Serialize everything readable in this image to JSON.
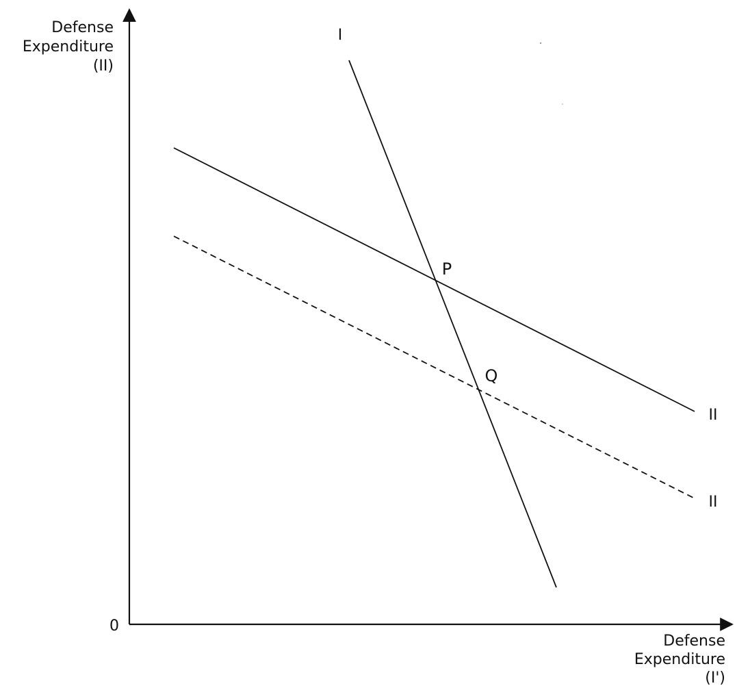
{
  "y_axis": {
    "label_lines": [
      "Defense",
      "Expenditure",
      "(II)"
    ]
  },
  "x_axis": {
    "label_lines": [
      "Defense",
      "Expenditure",
      "(I')"
    ]
  },
  "origin_label": "0",
  "curves": {
    "reaction_I": {
      "label": "I",
      "style": "solid"
    },
    "reaction_II": {
      "label": "II",
      "style": "solid"
    },
    "reaction_II_shifted": {
      "label": "II",
      "style": "dashed"
    }
  },
  "points": {
    "P": {
      "label": "P"
    },
    "Q": {
      "label": "Q"
    }
  }
}
